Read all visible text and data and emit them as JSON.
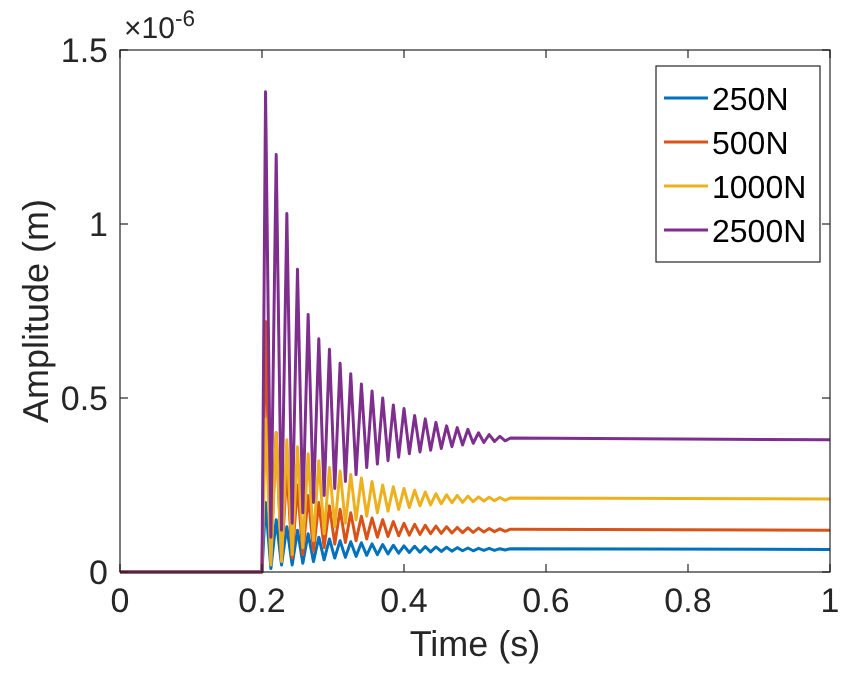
{
  "chart_data": {
    "type": "line",
    "xlabel": "Time (s)",
    "ylabel": "Amplitude (m)",
    "annotations": [
      "×10$^{-6}$"
    ],
    "x": [
      0,
      0.2,
      0.205,
      0.2125,
      0.22,
      0.2275,
      0.235,
      0.2425,
      0.25,
      0.2575,
      0.265,
      0.2725,
      0.28,
      0.2875,
      0.295,
      0.3025,
      0.31,
      0.3175,
      0.325,
      0.3325,
      0.34,
      0.3475,
      0.355,
      0.3625,
      0.37,
      0.3775,
      0.385,
      0.3925,
      0.4,
      0.4075,
      0.415,
      0.4225,
      0.43,
      0.4375,
      0.445,
      0.4525,
      0.46,
      0.4675,
      0.475,
      0.4825,
      0.49,
      0.4975,
      0.505,
      0.5125,
      0.52,
      0.5275,
      0.535,
      0.5425,
      0.55,
      1
    ],
    "series": [
      {
        "name": "250N",
        "color": "#0072bd",
        "values": [
          0,
          0,
          0.2,
          0.01,
          0.15,
          0.02,
          0.13,
          0.02,
          0.12,
          0.025,
          0.11,
          0.03,
          0.1,
          0.035,
          0.095,
          0.04,
          0.09,
          0.042,
          0.087,
          0.045,
          0.084,
          0.048,
          0.081,
          0.05,
          0.079,
          0.052,
          0.077,
          0.054,
          0.075,
          0.056,
          0.074,
          0.057,
          0.073,
          0.058,
          0.072,
          0.059,
          0.071,
          0.06,
          0.07,
          0.061,
          0.069,
          0.061,
          0.068,
          0.062,
          0.068,
          0.062,
          0.067,
          0.063,
          0.067,
          0.065
        ]
      },
      {
        "name": "500N",
        "color": "#d95319",
        "values": [
          0,
          0,
          0.72,
          0.04,
          0.4,
          0.03,
          0.3,
          0.04,
          0.25,
          0.05,
          0.22,
          0.06,
          0.2,
          0.07,
          0.19,
          0.08,
          0.18,
          0.085,
          0.17,
          0.09,
          0.16,
          0.095,
          0.155,
          0.1,
          0.15,
          0.102,
          0.145,
          0.104,
          0.14,
          0.106,
          0.137,
          0.108,
          0.134,
          0.11,
          0.132,
          0.111,
          0.13,
          0.112,
          0.128,
          0.113,
          0.127,
          0.114,
          0.126,
          0.115,
          0.125,
          0.116,
          0.124,
          0.117,
          0.123,
          0.12
        ]
      },
      {
        "name": "1000N",
        "color": "#edb120",
        "values": [
          0,
          0,
          0.44,
          0.02,
          0.4,
          0.03,
          0.38,
          0.05,
          0.36,
          0.07,
          0.34,
          0.09,
          0.32,
          0.11,
          0.3,
          0.13,
          0.29,
          0.14,
          0.28,
          0.15,
          0.27,
          0.16,
          0.26,
          0.17,
          0.25,
          0.175,
          0.245,
          0.18,
          0.24,
          0.185,
          0.235,
          0.19,
          0.23,
          0.193,
          0.225,
          0.196,
          0.222,
          0.199,
          0.22,
          0.2,
          0.218,
          0.202,
          0.216,
          0.204,
          0.215,
          0.205,
          0.214,
          0.206,
          0.213,
          0.21
        ]
      },
      {
        "name": "2500N",
        "color": "#7e2f8e",
        "values": [
          0,
          0,
          1.38,
          0.1,
          1.2,
          0.12,
          1.03,
          0.14,
          0.87,
          0.17,
          0.74,
          0.2,
          0.67,
          0.22,
          0.64,
          0.24,
          0.6,
          0.26,
          0.57,
          0.28,
          0.54,
          0.3,
          0.52,
          0.31,
          0.5,
          0.32,
          0.48,
          0.33,
          0.47,
          0.34,
          0.45,
          0.345,
          0.44,
          0.35,
          0.43,
          0.355,
          0.42,
          0.36,
          0.415,
          0.365,
          0.41,
          0.37,
          0.4,
          0.372,
          0.395,
          0.375,
          0.39,
          0.377,
          0.385,
          0.38
        ]
      }
    ],
    "xlim": [
      0,
      1
    ],
    "xticks": [
      0,
      0.2,
      0.4,
      0.6,
      0.8,
      1
    ],
    "ylim": [
      0,
      1.5
    ],
    "yticks": [
      0,
      0.5,
      1,
      1.5
    ],
    "legend": "top right",
    "grid": false
  }
}
